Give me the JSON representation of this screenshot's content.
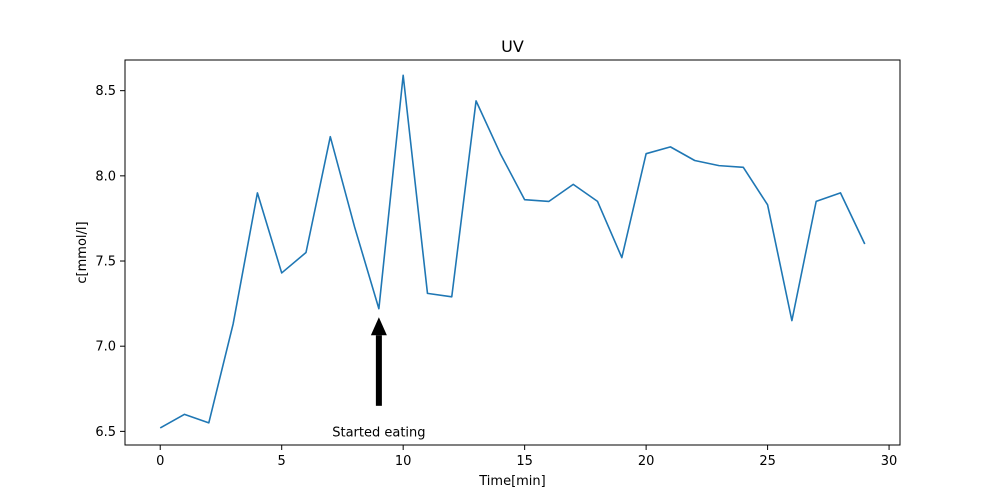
{
  "chart_data": {
    "type": "line",
    "title": "UV",
    "xlabel": "Time[min]",
    "ylabel": "c[mmol/l]",
    "xlim": [
      -1.45,
      30.45
    ],
    "ylim": [
      6.42,
      8.68
    ],
    "xticks": [
      0,
      5,
      10,
      15,
      20,
      25,
      30
    ],
    "yticks": [
      6.5,
      7.0,
      7.5,
      8.0,
      8.5
    ],
    "ytick_labels": [
      "6.5",
      "7.0",
      "7.5",
      "8.0",
      "8.5"
    ],
    "grid": false,
    "series": [
      {
        "color": "#1f77b4",
        "x": [
          0,
          1,
          2,
          3,
          4,
          5,
          6,
          7,
          8,
          9,
          10,
          11,
          12,
          13,
          14,
          15,
          16,
          17,
          18,
          19,
          20,
          21,
          22,
          23,
          24,
          25,
          26,
          27,
          28,
          29
        ],
        "y": [
          6.52,
          6.6,
          6.55,
          7.13,
          7.9,
          7.43,
          7.55,
          8.23,
          7.7,
          7.22,
          8.59,
          7.31,
          7.29,
          8.44,
          8.13,
          7.86,
          7.85,
          7.95,
          7.85,
          7.52,
          8.13,
          8.17,
          8.09,
          8.06,
          8.05,
          7.83,
          7.15,
          7.85,
          7.9,
          7.6
        ]
      }
    ],
    "annotations": [
      {
        "text": "Started eating",
        "arrow_tip": [
          9,
          7.17
        ],
        "arrow_tail": [
          9,
          6.65
        ],
        "text_at": [
          9,
          6.47
        ]
      }
    ]
  }
}
